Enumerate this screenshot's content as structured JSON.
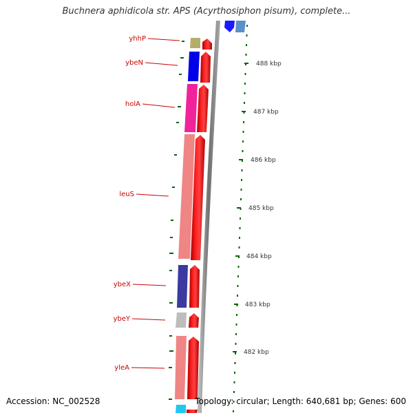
{
  "map": {
    "title": "Buchnera aphidicola str. APS (Acyrthosiphon pisum), complete...",
    "accession_text": "Accession: NC_002528",
    "summary_text": "Topology: circular; Length: 640,681 bp; Genes: 600",
    "scale_labels": [
      "488 kbp",
      "487 kbp",
      "486 kbp",
      "485 kbp",
      "484 kbp",
      "483 kbp",
      "482 kbp"
    ],
    "genes": [
      {
        "name": "yhhP",
        "color": "#b5ad6a"
      },
      {
        "name": "ybeN",
        "color": "#0000e8"
      },
      {
        "name": "holA",
        "color": "#f0239a"
      },
      {
        "name": "leuS",
        "color": "#ef8585"
      },
      {
        "name": "ybeX",
        "color": "#3a3aa0"
      },
      {
        "name": "ybeY",
        "color": "#bdbdbd"
      },
      {
        "name": "yleA",
        "color": "#ef8585"
      }
    ],
    "colors": {
      "label": "#cc0000",
      "arrow": "#ff0000",
      "backbone": "#888888",
      "tick": "#006400",
      "cds_top_blue": "#1a1aff",
      "cds_top_steel": "#5b8fc9",
      "cds_bottom_cyan": "#20c8f0"
    }
  }
}
